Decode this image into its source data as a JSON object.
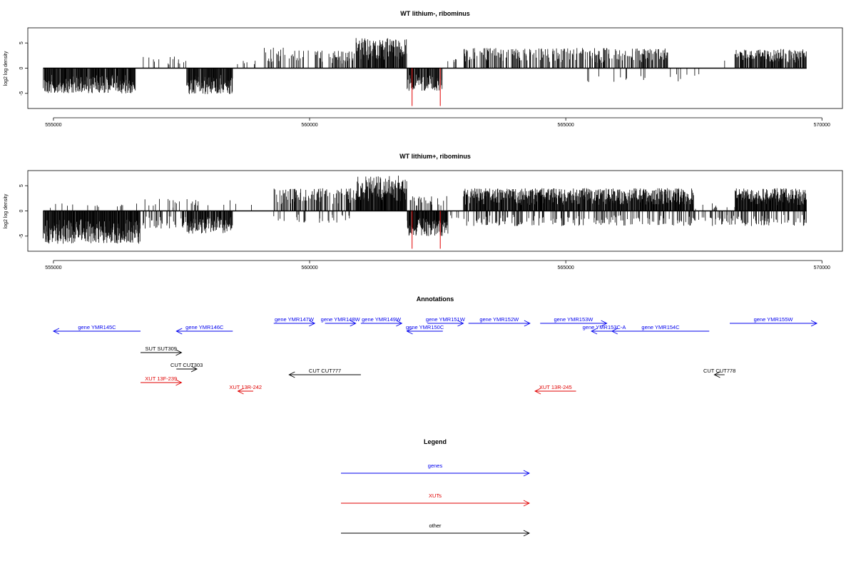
{
  "chart_data": [
    {
      "type": "bar",
      "title": "WT lithium-, ribominus",
      "xlabel": "",
      "ylabel": "log2 log density",
      "xlim": [
        554500,
        570400
      ],
      "ylim": [
        -8,
        8
      ],
      "x_ticks": [
        555000,
        560000,
        565000,
        570000
      ],
      "x_tick_labels": [
        "555000",
        "560000",
        "565000",
        "570000"
      ],
      "y_ticks": [
        -5,
        0,
        5
      ],
      "y_tick_labels": [
        "-5",
        "0",
        "5"
      ],
      "data_range": [
        554800,
        569700
      ],
      "highlighted_bars": [
        {
          "x": 562000,
          "value": -7.5,
          "color": "#e00000"
        },
        {
          "x": 562550,
          "value": -7.5,
          "color": "#e00000"
        }
      ],
      "density_profile": [
        {
          "from": 554800,
          "to": 556600,
          "sign": -1,
          "max": 5.0,
          "fill": 0.95
        },
        {
          "from": 556600,
          "to": 557600,
          "sign": 1,
          "max": 2.5,
          "fill": 0.08
        },
        {
          "from": 557600,
          "to": 558500,
          "sign": -1,
          "max": 5.2,
          "fill": 0.95
        },
        {
          "from": 558500,
          "to": 559100,
          "sign": 1,
          "max": 1.5,
          "fill": 0.05
        },
        {
          "from": 559100,
          "to": 560100,
          "sign": 1,
          "max": 4.2,
          "fill": 0.25
        },
        {
          "from": 560100,
          "to": 560900,
          "sign": 1,
          "max": 3.5,
          "fill": 0.35
        },
        {
          "from": 560900,
          "to": 561900,
          "sign": 1,
          "max": 6.0,
          "fill": 0.9
        },
        {
          "from": 561900,
          "to": 562600,
          "sign": -1,
          "max": 4.5,
          "fill": 0.85
        },
        {
          "from": 562600,
          "to": 563000,
          "sign": 1,
          "max": 2.0,
          "fill": 0.1
        },
        {
          "from": 563000,
          "to": 565200,
          "sign": 1,
          "max": 4.0,
          "fill": 0.45
        },
        {
          "from": 565200,
          "to": 567000,
          "sign": 1,
          "max": 4.0,
          "fill": 0.5
        },
        {
          "from": 565400,
          "to": 567600,
          "sign": -1,
          "max": 2.8,
          "fill": 0.06
        },
        {
          "from": 567600,
          "to": 568300,
          "sign": 1,
          "max": 1.5,
          "fill": 0.03
        },
        {
          "from": 568300,
          "to": 569700,
          "sign": 1,
          "max": 3.8,
          "fill": 0.7
        }
      ]
    },
    {
      "type": "bar",
      "title": "WT lithium+, ribominus",
      "xlabel": "",
      "ylabel": "log2 log density",
      "xlim": [
        554500,
        570400
      ],
      "ylim": [
        -8,
        8
      ],
      "x_ticks": [
        555000,
        560000,
        565000,
        570000
      ],
      "x_tick_labels": [
        "555000",
        "560000",
        "565000",
        "570000"
      ],
      "y_ticks": [
        -5,
        0,
        5
      ],
      "y_tick_labels": [
        "-5",
        "0",
        "5"
      ],
      "data_range": [
        554800,
        569700
      ],
      "highlighted_bars": [
        {
          "x": 562000,
          "value": -7.5,
          "color": "#e00000"
        },
        {
          "x": 562550,
          "value": -7.5,
          "color": "#e00000"
        }
      ],
      "density_profile": [
        {
          "from": 554800,
          "to": 556700,
          "sign": -1,
          "max": 6.5,
          "fill": 1.0
        },
        {
          "from": 554800,
          "to": 556700,
          "sign": 1,
          "max": 1.5,
          "fill": 0.05
        },
        {
          "from": 556700,
          "to": 557600,
          "sign": -1,
          "max": 3.5,
          "fill": 0.3
        },
        {
          "from": 556700,
          "to": 557600,
          "sign": 1,
          "max": 2.5,
          "fill": 0.1
        },
        {
          "from": 557600,
          "to": 558500,
          "sign": -1,
          "max": 4.5,
          "fill": 0.95
        },
        {
          "from": 557600,
          "to": 558500,
          "sign": 1,
          "max": 2.5,
          "fill": 0.1
        },
        {
          "from": 558500,
          "to": 559300,
          "sign": 1,
          "max": 1.5,
          "fill": 0.06
        },
        {
          "from": 559300,
          "to": 560900,
          "sign": 1,
          "max": 4.5,
          "fill": 0.45
        },
        {
          "from": 559300,
          "to": 560900,
          "sign": -1,
          "max": 2.5,
          "fill": 0.15
        },
        {
          "from": 560900,
          "to": 561900,
          "sign": 1,
          "max": 7.0,
          "fill": 1.0
        },
        {
          "from": 561900,
          "to": 562700,
          "sign": -1,
          "max": 5.0,
          "fill": 1.0
        },
        {
          "from": 561900,
          "to": 562700,
          "sign": 1,
          "max": 3.0,
          "fill": 0.3
        },
        {
          "from": 562700,
          "to": 563000,
          "sign": -1,
          "max": 2.0,
          "fill": 0.2
        },
        {
          "from": 563000,
          "to": 567500,
          "sign": 1,
          "max": 4.5,
          "fill": 0.95
        },
        {
          "from": 563000,
          "to": 569700,
          "sign": -1,
          "max": 3.0,
          "fill": 0.3
        },
        {
          "from": 567500,
          "to": 568300,
          "sign": 1,
          "max": 1.5,
          "fill": 0.1
        },
        {
          "from": 568300,
          "to": 569700,
          "sign": 1,
          "max": 4.5,
          "fill": 1.0
        }
      ]
    }
  ],
  "annotations": {
    "title": "Annotations",
    "xlim": [
      554500,
      570400
    ],
    "features": [
      {
        "label": "gene YMR145C",
        "from": 556700,
        "to": 555000,
        "color": "#0000ee",
        "row": 1
      },
      {
        "label": "gene YMR146C",
        "from": 558500,
        "to": 557400,
        "color": "#0000ee",
        "row": 1
      },
      {
        "label": "gene YMR147W",
        "from": 559300,
        "to": 560100,
        "color": "#0000ee",
        "row": 0
      },
      {
        "label": "gene YMR148W",
        "from": 560300,
        "to": 560900,
        "color": "#0000ee",
        "row": 0
      },
      {
        "label": "gene YMR149W",
        "from": 561000,
        "to": 561800,
        "color": "#0000ee",
        "row": 0
      },
      {
        "label": "gene YMR150C",
        "from": 562600,
        "to": 561900,
        "color": "#0000ee",
        "row": 1
      },
      {
        "label": "gene YMR151W",
        "from": 562300,
        "to": 563000,
        "color": "#0000ee",
        "row": 0
      },
      {
        "label": "gene YMR152W",
        "from": 563100,
        "to": 564300,
        "color": "#0000ee",
        "row": 0
      },
      {
        "label": "gene YMR153W",
        "from": 564500,
        "to": 565800,
        "color": "#0000ee",
        "row": 0
      },
      {
        "label": "gene YMR153C-A",
        "from": 566000,
        "to": 565500,
        "color": "#0000ee",
        "row": 1
      },
      {
        "label": "gene YMR154C",
        "from": 567800,
        "to": 565900,
        "color": "#0000ee",
        "row": 1
      },
      {
        "label": "gene YMR155W",
        "from": 568200,
        "to": 569900,
        "color": "#0000ee",
        "row": 0
      },
      {
        "label": "SUT SUT309",
        "from": 556700,
        "to": 557500,
        "color": "#000000",
        "row": 2
      },
      {
        "label": "CUT CUT303",
        "from": 557400,
        "to": 557800,
        "color": "#000000",
        "row": 3
      },
      {
        "label": "CUT CUT777",
        "from": 561000,
        "to": 559600,
        "color": "#000000",
        "row": 4
      },
      {
        "label": "CUT CUT778",
        "from": 568100,
        "to": 567900,
        "color": "#000000",
        "row": 4
      },
      {
        "label": "XUT 13F-239",
        "from": 556700,
        "to": 557500,
        "color": "#e00000",
        "row": 5
      },
      {
        "label": "XUT 13R-242",
        "from": 558900,
        "to": 558600,
        "color": "#e00000",
        "row": 6
      },
      {
        "label": "XUT 13R-245",
        "from": 565200,
        "to": 564400,
        "color": "#e00000",
        "row": 6
      }
    ]
  },
  "legend": {
    "title": "Legend",
    "items": [
      {
        "label": "genes",
        "color": "#0000ee"
      },
      {
        "label": "XUTs",
        "color": "#e00000"
      },
      {
        "label": "other",
        "color": "#000000"
      }
    ]
  }
}
